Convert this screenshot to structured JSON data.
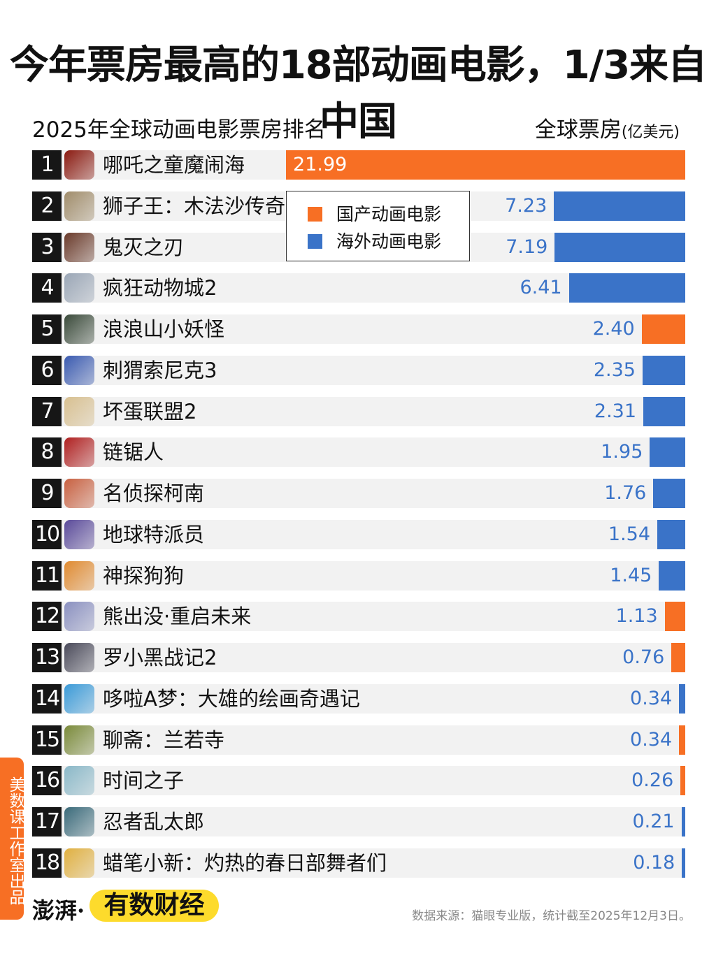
{
  "header": {
    "title": "今年票房最高的18部动画电影，1/3来自中国",
    "subtitle": "2025年全球动画电影票房排名",
    "unit_main": "全球票房",
    "unit_small": "(亿美元)"
  },
  "colors": {
    "domestic": "#f76f24",
    "overseas": "#3a73c8",
    "row_bg": "#f2f2f2",
    "rank_bg": "#161616"
  },
  "chart_data": {
    "type": "bar",
    "orientation": "horizontal",
    "title": "2025年全球动画电影票房排名",
    "ylabel": "全球票房(亿美元)",
    "legend": [
      {
        "name": "国产动画电影",
        "color": "#f76f24"
      },
      {
        "name": "海外动画电影",
        "color": "#3a73c8"
      }
    ],
    "legend_position": "top-center",
    "items": [
      {
        "rank": "1",
        "name": "哪吒之童魔闹海",
        "value": 21.99,
        "label": "21.99",
        "type": "domestic",
        "poster": "#8a1a10"
      },
      {
        "rank": "2",
        "name": "狮子王：木法沙传奇",
        "value": 7.23,
        "label": "7.23",
        "type": "overseas",
        "poster": "#a08c6a"
      },
      {
        "rank": "3",
        "name": "鬼灭之刃",
        "value": 7.19,
        "label": "7.19",
        "type": "overseas",
        "poster": "#6a3a2a"
      },
      {
        "rank": "4",
        "name": "疯狂动物城2",
        "value": 6.41,
        "label": "6.41",
        "type": "overseas",
        "poster": "#9aa6b6"
      },
      {
        "rank": "5",
        "name": "浪浪山小妖怪",
        "value": 2.4,
        "label": "2.40",
        "type": "domestic",
        "poster": "#3a4a3a"
      },
      {
        "rank": "6",
        "name": "刺猬索尼克3",
        "value": 2.35,
        "label": "2.35",
        "type": "overseas",
        "poster": "#3a5ab0"
      },
      {
        "rank": "7",
        "name": "坏蛋联盟2",
        "value": 2.31,
        "label": "2.31",
        "type": "overseas",
        "poster": "#d8c090"
      },
      {
        "rank": "8",
        "name": "链锯人",
        "value": 1.95,
        "label": "1.95",
        "type": "overseas",
        "poster": "#b02020"
      },
      {
        "rank": "9",
        "name": "名侦探柯南",
        "value": 1.76,
        "label": "1.76",
        "type": "overseas",
        "poster": "#c86040"
      },
      {
        "rank": "10",
        "name": "地球特派员",
        "value": 1.54,
        "label": "1.54",
        "type": "overseas",
        "poster": "#5a4a9a"
      },
      {
        "rank": "11",
        "name": "神探狗狗",
        "value": 1.45,
        "label": "1.45",
        "type": "overseas",
        "poster": "#e08a30"
      },
      {
        "rank": "12",
        "name": "熊出没·重启未来",
        "value": 1.13,
        "label": "1.13",
        "type": "domestic",
        "poster": "#8a90c0"
      },
      {
        "rank": "13",
        "name": "罗小黑战记2",
        "value": 0.76,
        "label": "0.76",
        "type": "domestic",
        "poster": "#4a4a5a"
      },
      {
        "rank": "14",
        "name": "哆啦A梦：大雄的绘画奇遇记",
        "value": 0.34,
        "label": "0.34",
        "type": "overseas",
        "poster": "#3a9ad8"
      },
      {
        "rank": "15",
        "name": "聊斋：兰若寺",
        "value": 0.34,
        "label": "0.34",
        "type": "domestic",
        "poster": "#7a8a3a"
      },
      {
        "rank": "16",
        "name": "时间之子",
        "value": 0.26,
        "label": "0.26",
        "type": "domestic",
        "poster": "#8ab8c8"
      },
      {
        "rank": "17",
        "name": "忍者乱太郎",
        "value": 0.21,
        "label": "0.21",
        "type": "overseas",
        "poster": "#3a6a7a"
      },
      {
        "rank": "18",
        "name": "蜡笔小新：灼热的春日部舞者们",
        "value": 0.18,
        "label": "0.18",
        "type": "overseas",
        "poster": "#e0b040"
      }
    ]
  },
  "footer": {
    "side_label": "美数课工作室出品",
    "logo_thepaper": "澎湃·",
    "logo_youshu": "有数财经",
    "source": "数据来源：猫眼专业版，统计截至2025年12月3日。"
  }
}
